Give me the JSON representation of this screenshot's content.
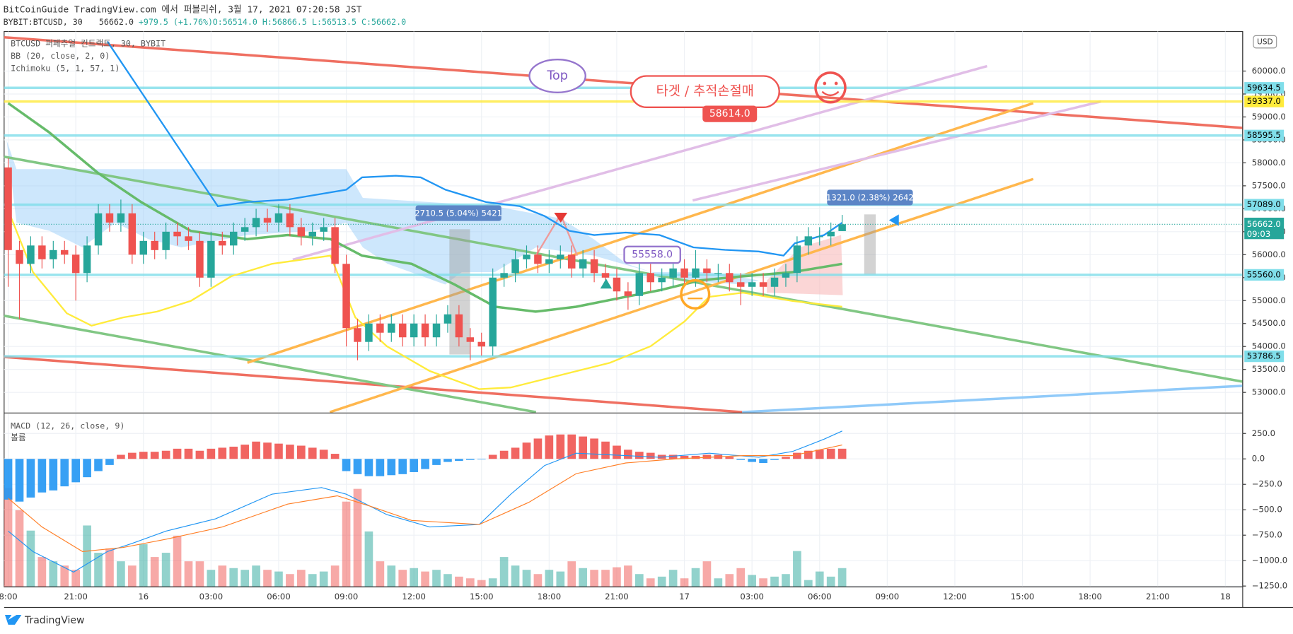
{
  "header": {
    "publisher": "BitCoinGuide TradingView.com 에서 퍼블리쉬, 3월 17, 2021 07:20:58 JST",
    "symbol": "BYBIT:BTCUSD, 30",
    "last": "56662.0",
    "change": "+979.5 (+1.76%)",
    "ohlc": "O:56514.0 H:56866.5 L:56513.5 C:56662.0"
  },
  "footer": {
    "brand": "TradingView"
  },
  "chart_data": [
    {
      "type": "candlestick",
      "legend": [
        "BTCUSD 퍼페추얼 컨트랙트, 30, BYBIT",
        "BB (20, close, 2, 0)",
        "Ichimoku (5, 1, 57, 1)"
      ],
      "currency": "USD",
      "x": [
        0,
        0.5,
        1,
        1.5,
        2,
        2.5,
        3,
        3.5,
        4,
        4.5,
        5,
        5.5,
        6,
        6.5,
        7,
        7.5,
        8,
        8.5,
        9,
        9.5,
        10,
        10.5,
        11,
        11.5,
        12,
        12.5,
        13,
        13.5,
        14,
        14.5,
        15,
        15.5,
        16,
        16.5,
        17,
        17.5,
        18,
        18.5,
        19,
        19.5,
        20,
        20.5,
        21,
        21.5,
        22,
        22.5,
        23,
        23.5,
        24,
        24.5,
        25,
        25.5,
        26,
        26.5,
        27,
        27.5,
        28,
        28.5,
        29,
        29.5,
        30,
        30.5,
        31,
        31.5,
        32,
        32.5,
        33,
        33.5,
        34,
        34.5,
        35,
        35.5,
        36,
        36.5,
        37
      ],
      "open": [
        57900,
        56100,
        55800,
        56200,
        55900,
        56100,
        56000,
        55600,
        56200,
        56900,
        56700,
        56900,
        56000,
        56300,
        56100,
        56500,
        56400,
        56300,
        55500,
        56300,
        56200,
        56500,
        56600,
        56800,
        56700,
        56900,
        56600,
        56400,
        56500,
        56600,
        55800,
        54400,
        54100,
        54500,
        54300,
        54500,
        54200,
        54500,
        54200,
        54500,
        54700,
        54200,
        54100,
        54000,
        55500,
        55600,
        55900,
        56000,
        55800,
        55900,
        56000,
        55700,
        55900,
        55600,
        55500,
        55200,
        55100,
        55600,
        55400,
        55500,
        55700,
        55500,
        55700,
        55600,
        55600,
        55400,
        55300,
        55400,
        55300,
        55500,
        55600,
        56200,
        56400,
        56400,
        56514
      ],
      "high": [
        58100,
        56300,
        56400,
        56400,
        56300,
        56300,
        56200,
        56400,
        57100,
        57100,
        57200,
        57100,
        56500,
        56500,
        56700,
        56700,
        56600,
        56500,
        56500,
        56500,
        56700,
        56800,
        57000,
        57000,
        57100,
        57100,
        56800,
        56700,
        56800,
        56800,
        56000,
        54600,
        54700,
        54700,
        54700,
        54700,
        54700,
        54700,
        54700,
        54900,
        54900,
        54400,
        54300,
        55700,
        55800,
        56100,
        56200,
        56200,
        56100,
        56200,
        56200,
        56100,
        56100,
        55800,
        55700,
        55400,
        55800,
        55800,
        55700,
        55900,
        55900,
        56100,
        55900,
        55800,
        55800,
        55600,
        55600,
        55600,
        55700,
        55800,
        56400,
        56600,
        56600,
        56700,
        56866.5
      ],
      "low": [
        55300,
        54600,
        55600,
        55700,
        55700,
        55800,
        55000,
        55400,
        56000,
        56500,
        56500,
        55800,
        55800,
        55900,
        55900,
        56200,
        56100,
        55300,
        55300,
        56000,
        56000,
        56300,
        56400,
        56500,
        56500,
        56400,
        56200,
        56200,
        56300,
        55600,
        54000,
        53700,
        53900,
        54100,
        54100,
        54000,
        54000,
        54000,
        54000,
        54300,
        54000,
        53700,
        53800,
        53800,
        55300,
        55400,
        55700,
        55600,
        55600,
        55700,
        55500,
        55500,
        55400,
        55300,
        55000,
        54800,
        54900,
        55200,
        55200,
        55300,
        55300,
        55300,
        55400,
        55400,
        55200,
        54900,
        55100,
        55100,
        55100,
        55300,
        55400,
        56000,
        56200,
        56200,
        56513.5
      ],
      "close": [
        56100,
        55800,
        56200,
        55900,
        56100,
        56000,
        55600,
        56200,
        56900,
        56700,
        56900,
        56000,
        56300,
        56100,
        56500,
        56400,
        56300,
        55500,
        56300,
        56200,
        56500,
        56600,
        56800,
        56700,
        56900,
        56600,
        56400,
        56500,
        56600,
        55800,
        54400,
        54100,
        54500,
        54300,
        54500,
        54200,
        54500,
        54200,
        54500,
        54700,
        54200,
        54100,
        54000,
        55500,
        55600,
        55900,
        56000,
        55800,
        55900,
        56000,
        55700,
        55900,
        55600,
        55500,
        55200,
        55100,
        55600,
        55400,
        55500,
        55700,
        55500,
        55700,
        55600,
        55600,
        55400,
        55300,
        55400,
        55300,
        55500,
        55600,
        56200,
        56400,
        56400,
        56500,
        56662
      ],
      "up_color": "#26a69a",
      "down_color": "#ef5350",
      "xlim": [
        -0.18,
        54.77
      ],
      "xticks": [
        {
          "value": 0,
          "label": "8:00"
        },
        {
          "value": 3,
          "label": "21:00"
        },
        {
          "value": 6,
          "label": "16"
        },
        {
          "value": 9,
          "label": "03:00"
        },
        {
          "value": 12,
          "label": "06:00"
        },
        {
          "value": 15,
          "label": "09:00"
        },
        {
          "value": 18,
          "label": "12:00"
        },
        {
          "value": 21,
          "label": "15:00"
        },
        {
          "value": 24,
          "label": "18:00"
        },
        {
          "value": 27,
          "label": "21:00"
        },
        {
          "value": 30,
          "label": "17"
        },
        {
          "value": 33,
          "label": "03:00"
        },
        {
          "value": 36,
          "label": "06:00"
        },
        {
          "value": 39,
          "label": "09:00"
        },
        {
          "value": 42,
          "label": "12:00"
        },
        {
          "value": 45,
          "label": "15:00"
        },
        {
          "value": 48,
          "label": "18:00"
        },
        {
          "value": 51,
          "label": "21:00"
        },
        {
          "value": 54,
          "label": "18"
        }
      ],
      "ylim": [
        52569,
        60862
      ],
      "yticks": [
        {
          "value": 53000,
          "label": "53000.0"
        },
        {
          "value": 53500,
          "label": "53500.0"
        },
        {
          "value": 54000,
          "label": "54000.0"
        },
        {
          "value": 54500,
          "label": "54500.0"
        },
        {
          "value": 55000,
          "label": "55000.0"
        },
        {
          "value": 55500,
          "label": "55500.0"
        },
        {
          "value": 56000,
          "label": "56000.0"
        },
        {
          "value": 56500,
          "label": "56500.0"
        },
        {
          "value": 57000,
          "label": "57000.0"
        },
        {
          "value": 57500,
          "label": "57500.0"
        },
        {
          "value": 58000,
          "label": "58000.0"
        },
        {
          "value": 58500,
          "label": "58500.0"
        },
        {
          "value": 59000,
          "label": "59000.0"
        },
        {
          "value": 59500,
          "label": "59500.0"
        },
        {
          "value": 60000,
          "label": "60000.0"
        }
      ],
      "grid": true,
      "lines": [
        {
          "color": "#2196f3",
          "width": 2,
          "x": [
            4.4,
            9.3,
            10.6,
            12.4,
            15.0,
            15.7,
            17.2,
            18.3,
            19.4,
            21.2,
            22.7,
            23.8,
            24.9,
            26.0,
            27.4,
            28.9,
            30.4,
            31.8,
            33.3,
            34.4,
            34.9,
            36.2,
            37.0
          ],
          "values": [
            60646,
            57056,
            57146,
            57200,
            57415,
            57684,
            57720,
            57684,
            57415,
            57146,
            57056,
            56841,
            56518,
            56428,
            56482,
            56428,
            56159,
            56105,
            56069,
            55979,
            56248,
            56428,
            56697
          ]
        },
        {
          "color": "#ffeb3b",
          "width": 2,
          "x": [
            0,
            1.1,
            2.6,
            3.7,
            5.1,
            6.6,
            8.1,
            9.9,
            11.7,
            14.3,
            15.4,
            16.8,
            18.7,
            20.9,
            22.3,
            24.5,
            26.7,
            28.5,
            30.0,
            31.1,
            32.6,
            34.8,
            37.0
          ],
          "values": [
            56967,
            55620,
            54723,
            54453,
            54633,
            54759,
            54992,
            55530,
            55800,
            55979,
            54633,
            54005,
            53466,
            53071,
            53107,
            53376,
            53646,
            54005,
            54543,
            55082,
            55172,
            54992,
            54866
          ]
        },
        {
          "color": "#66bb6a",
          "width": 3,
          "x": [
            0,
            1.8,
            4.0,
            5.9,
            8.1,
            10.6,
            12.4,
            14.3,
            15.7,
            17.9,
            19.8,
            21.6,
            23.4,
            25.2,
            27.4,
            28.9,
            30.7,
            32.6,
            34.8,
            37.0
          ],
          "values": [
            59300,
            58672,
            57774,
            57146,
            56518,
            56338,
            56428,
            56338,
            55979,
            55800,
            55351,
            54866,
            54759,
            54866,
            55082,
            55225,
            55441,
            55530,
            55620,
            55800
          ]
        }
      ],
      "levels": [
        {
          "value": 59634.5,
          "label": "59634.5",
          "color": "#80deea"
        },
        {
          "value": 59337,
          "label": "59337.0",
          "color": "#ffeb3b"
        },
        {
          "value": 58595.5,
          "label": "58595.5",
          "color": "#80deea"
        },
        {
          "value": 57089,
          "label": "57089.0",
          "color": "#80deea"
        },
        {
          "value": 55560,
          "label": "55560.0",
          "color": "#80deea"
        },
        {
          "value": 53786.5,
          "label": "53786.5",
          "color": "#80deea"
        }
      ],
      "last_price": {
        "value": 56662,
        "label": "56662.0",
        "countdown": "09:03",
        "color": "#26a69a"
      },
      "annotations": {
        "top": "Top",
        "target": "타겟 / 추적손절매",
        "price1": "58614.0",
        "price2": "55558.0",
        "measure1": "2710.5 (5.04%) 5421",
        "measure2": "1321.0 (2.38%) 2642"
      }
    },
    {
      "type": "macd",
      "legend": [
        "MACD (12, 26, close, 9)",
        "볼륨"
      ],
      "histogram": [
        -400,
        -420,
        -380,
        -330,
        -310,
        -270,
        -230,
        -180,
        -120,
        -60,
        40,
        60,
        70,
        70,
        80,
        100,
        100,
        80,
        100,
        110,
        120,
        140,
        170,
        160,
        150,
        140,
        130,
        110,
        90,
        50,
        -120,
        -150,
        -170,
        -170,
        -160,
        -150,
        -130,
        -100,
        -60,
        -30,
        -20,
        -10,
        -5,
        40,
        80,
        110,
        160,
        200,
        230,
        240,
        240,
        220,
        200,
        170,
        130,
        90,
        70,
        60,
        40,
        40,
        30,
        30,
        40,
        40,
        20,
        -10,
        -30,
        -40,
        -10,
        20,
        60,
        80,
        90,
        100,
        100
      ],
      "volume": [
        116,
        90,
        66,
        35,
        30,
        25,
        20,
        72,
        40,
        45,
        30,
        25,
        50,
        35,
        40,
        60,
        30,
        30,
        20,
        25,
        22,
        20,
        25,
        20,
        18,
        15,
        20,
        15,
        18,
        25,
        100,
        115,
        65,
        30,
        25,
        20,
        22,
        18,
        20,
        15,
        12,
        10,
        8,
        10,
        35,
        25,
        20,
        15,
        20,
        18,
        30,
        22,
        20,
        20,
        23,
        25,
        15,
        10,
        12,
        20,
        10,
        22,
        30,
        10,
        15,
        22,
        14,
        10,
        12,
        15,
        42,
        8,
        18,
        12,
        22
      ],
      "ylim": [
        -1258,
        443
      ],
      "yticks": [
        {
          "value": 250,
          "label": "250.0"
        },
        {
          "value": 0,
          "label": "0.0"
        },
        {
          "value": -250,
          "label": "−250.0"
        },
        {
          "value": -500,
          "label": "−500.0"
        },
        {
          "value": -750,
          "label": "−750.0"
        },
        {
          "value": -1000,
          "label": "−1000.0"
        },
        {
          "value": -1250,
          "label": "−1250.0"
        }
      ],
      "lines": [
        {
          "color": "#2196f3",
          "width": 1,
          "x": [
            0,
            1.1,
            2.9,
            4.4,
            5.5,
            7.0,
            9.2,
            11.7,
            13.9,
            15.0,
            16.8,
            18.7,
            20.9,
            22.3,
            23.8,
            25.2,
            26.7,
            28.9,
            31.1,
            33.3,
            34.8,
            36.2,
            37.0
          ],
          "values": [
            -710,
            -911,
            -1113,
            -911,
            -831,
            -710,
            -589,
            -347,
            -282,
            -347,
            -548,
            -669,
            -645,
            -347,
            -65,
            56,
            40,
            16,
            56,
            16,
            73,
            194,
            274
          ]
        },
        {
          "color": "#ff7f27",
          "width": 1,
          "x": [
            0,
            1.5,
            3.3,
            5.1,
            7.0,
            9.5,
            12.4,
            14.6,
            16.1,
            17.9,
            20.9,
            23.1,
            25.2,
            27.4,
            29.6,
            32.6,
            34.8,
            37.0
          ],
          "values": [
            -387,
            -669,
            -911,
            -871,
            -790,
            -669,
            -444,
            -363,
            -468,
            -605,
            -645,
            -427,
            -145,
            -40,
            0,
            32,
            32,
            137
          ]
        }
      ]
    }
  ]
}
